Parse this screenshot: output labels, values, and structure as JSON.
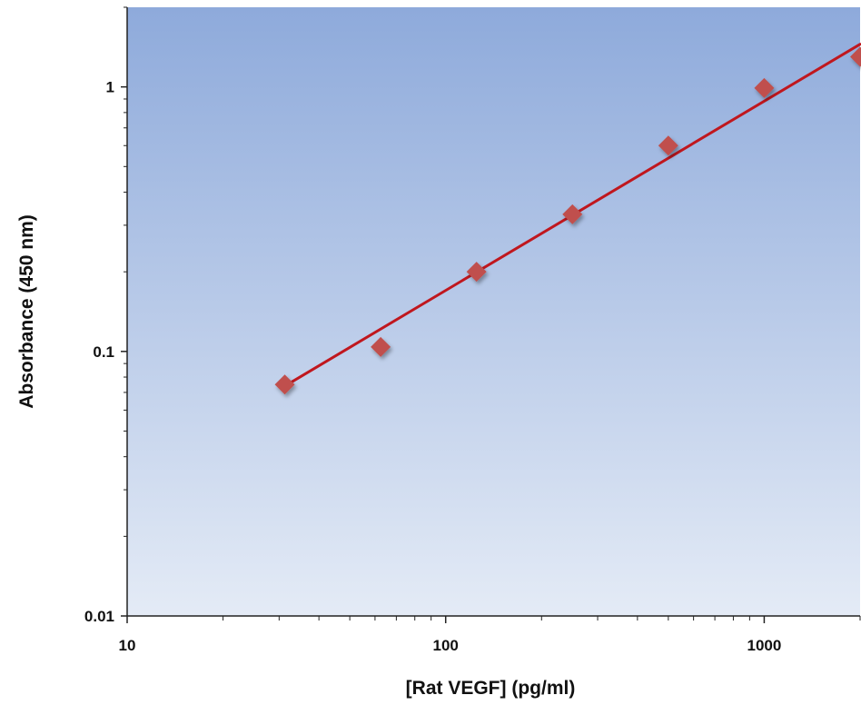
{
  "chart_data": {
    "type": "scatter",
    "title": "",
    "xlabel": "[Rat VEGF]  (pg/ml)",
    "ylabel": "Absorbance (450 nm)",
    "x_scale": "log",
    "y_scale": "log",
    "xlim": [
      10,
      2000
    ],
    "ylim": [
      0.01,
      2
    ],
    "x_ticks": [
      10,
      100,
      1000
    ],
    "x_tick_labels": [
      "10",
      "100",
      "1000"
    ],
    "y_ticks": [
      0.01,
      0.1,
      1
    ],
    "y_tick_labels": [
      "0.01",
      "0.1",
      "1"
    ],
    "grid": false,
    "legend": "none",
    "series": [
      {
        "x": [
          31.25,
          62.5,
          125,
          250,
          500,
          1000,
          2000
        ],
        "y": [
          0.075,
          0.104,
          0.2,
          0.33,
          0.6,
          0.99,
          1.3
        ],
        "marker": "diamond",
        "color": "#c0504d"
      }
    ],
    "fit_line": {
      "x": [
        31.25,
        2000
      ],
      "y": [
        0.074,
        1.45
      ],
      "color": "#c0171e"
    },
    "plot_background": {
      "top_color": "#8eaadb",
      "bottom_color": "#e4ebf6"
    }
  }
}
